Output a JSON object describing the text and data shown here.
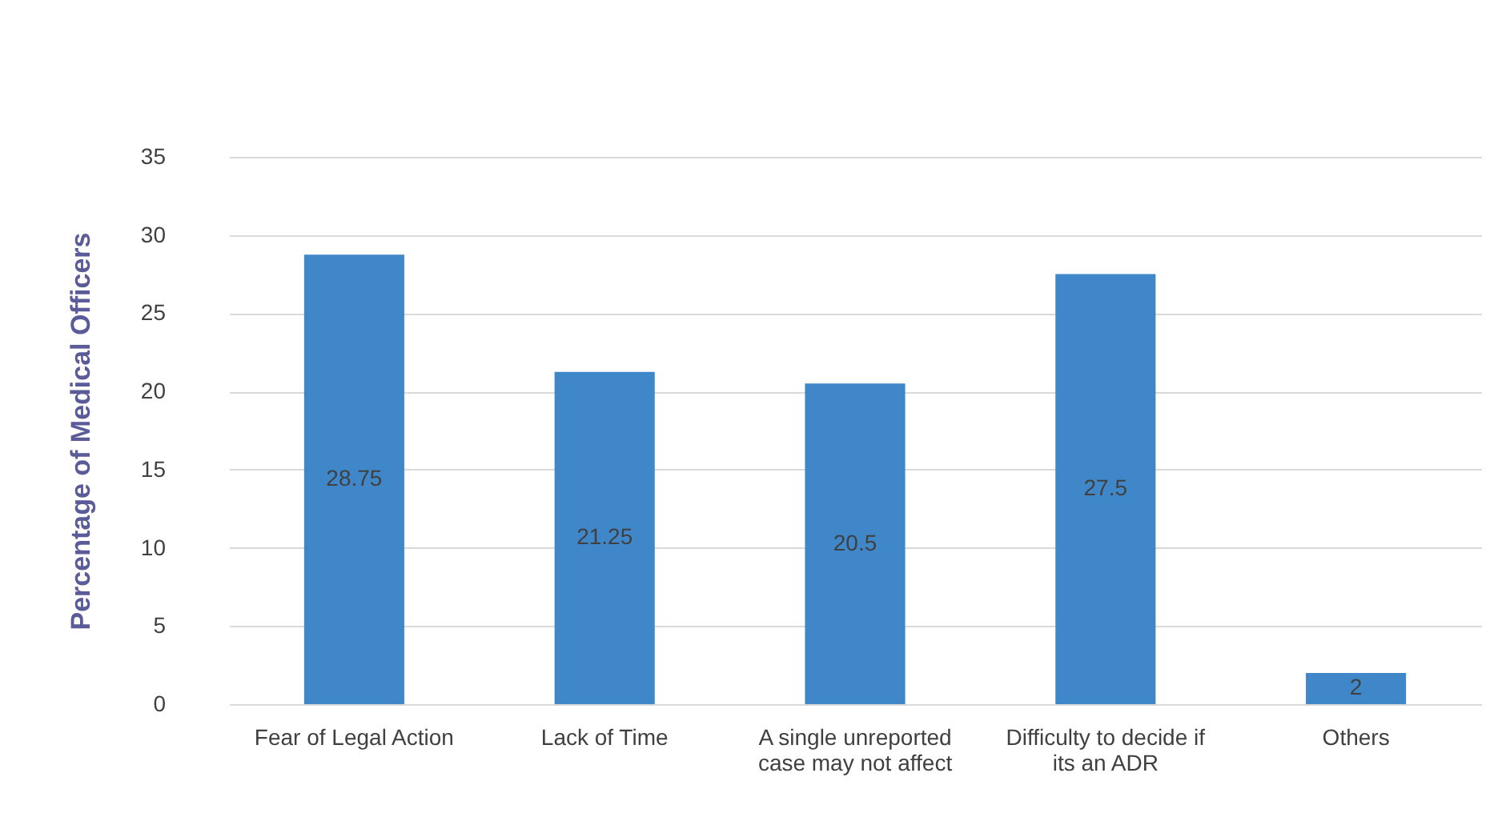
{
  "chart_data": {
    "type": "bar",
    "ylabel": "Percentage of Medical Officers",
    "categories": [
      "Fear of Legal Action",
      "Lack of Time",
      "A single unreported case may not affect",
      "Difficulty to decide if its an ADR",
      "Others"
    ],
    "values": [
      28.75,
      21.25,
      20.5,
      27.5,
      2
    ],
    "color": "#3f87c9",
    "data_labels": true,
    "ylim": [
      0,
      35
    ],
    "yticks": [
      0,
      5,
      10,
      15,
      20,
      25,
      30,
      35
    ],
    "grid": "y"
  }
}
